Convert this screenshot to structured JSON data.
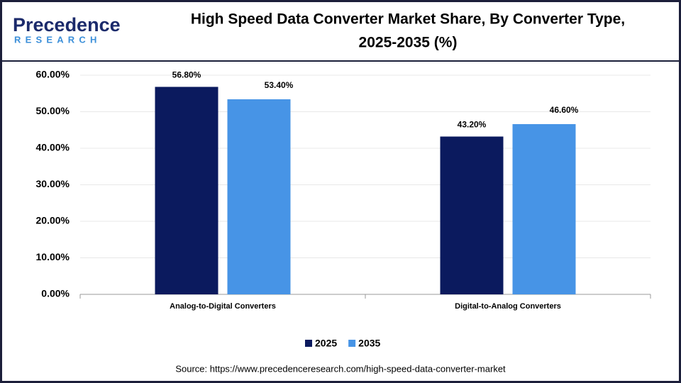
{
  "logo": {
    "name": "Precedence",
    "tagline": "RESEARCH"
  },
  "chart_data": {
    "type": "bar",
    "title": [
      "High Speed Data Converter Market Share, By Converter Type,",
      "2025-2035 (%)"
    ],
    "categories": [
      "Analog-to-Digital Converters",
      "Digital-to-Analog Converters"
    ],
    "series": [
      {
        "name": "2025",
        "color": "#0b1a5e",
        "values": [
          56.8,
          43.2
        ],
        "value_labels": [
          "56.80%",
          "43.20%"
        ]
      },
      {
        "name": "2035",
        "color": "#4794e6",
        "values": [
          53.4,
          46.6
        ],
        "value_labels": [
          "53.40%",
          "46.60%"
        ]
      }
    ],
    "ylim": [
      0,
      60
    ],
    "yticks": [
      {
        "value": 0,
        "label": "0.00%"
      },
      {
        "value": 10,
        "label": "10.00%"
      },
      {
        "value": 20,
        "label": "20.00%"
      },
      {
        "value": 30,
        "label": "30.00%"
      },
      {
        "value": 40,
        "label": "40.00%"
      },
      {
        "value": 50,
        "label": "50.00%"
      },
      {
        "value": 60,
        "label": "60.00%"
      }
    ],
    "grid": true,
    "legend": "bottom",
    "source": "Source: https://www.precedenceresearch.com/high-speed-data-converter-market"
  }
}
